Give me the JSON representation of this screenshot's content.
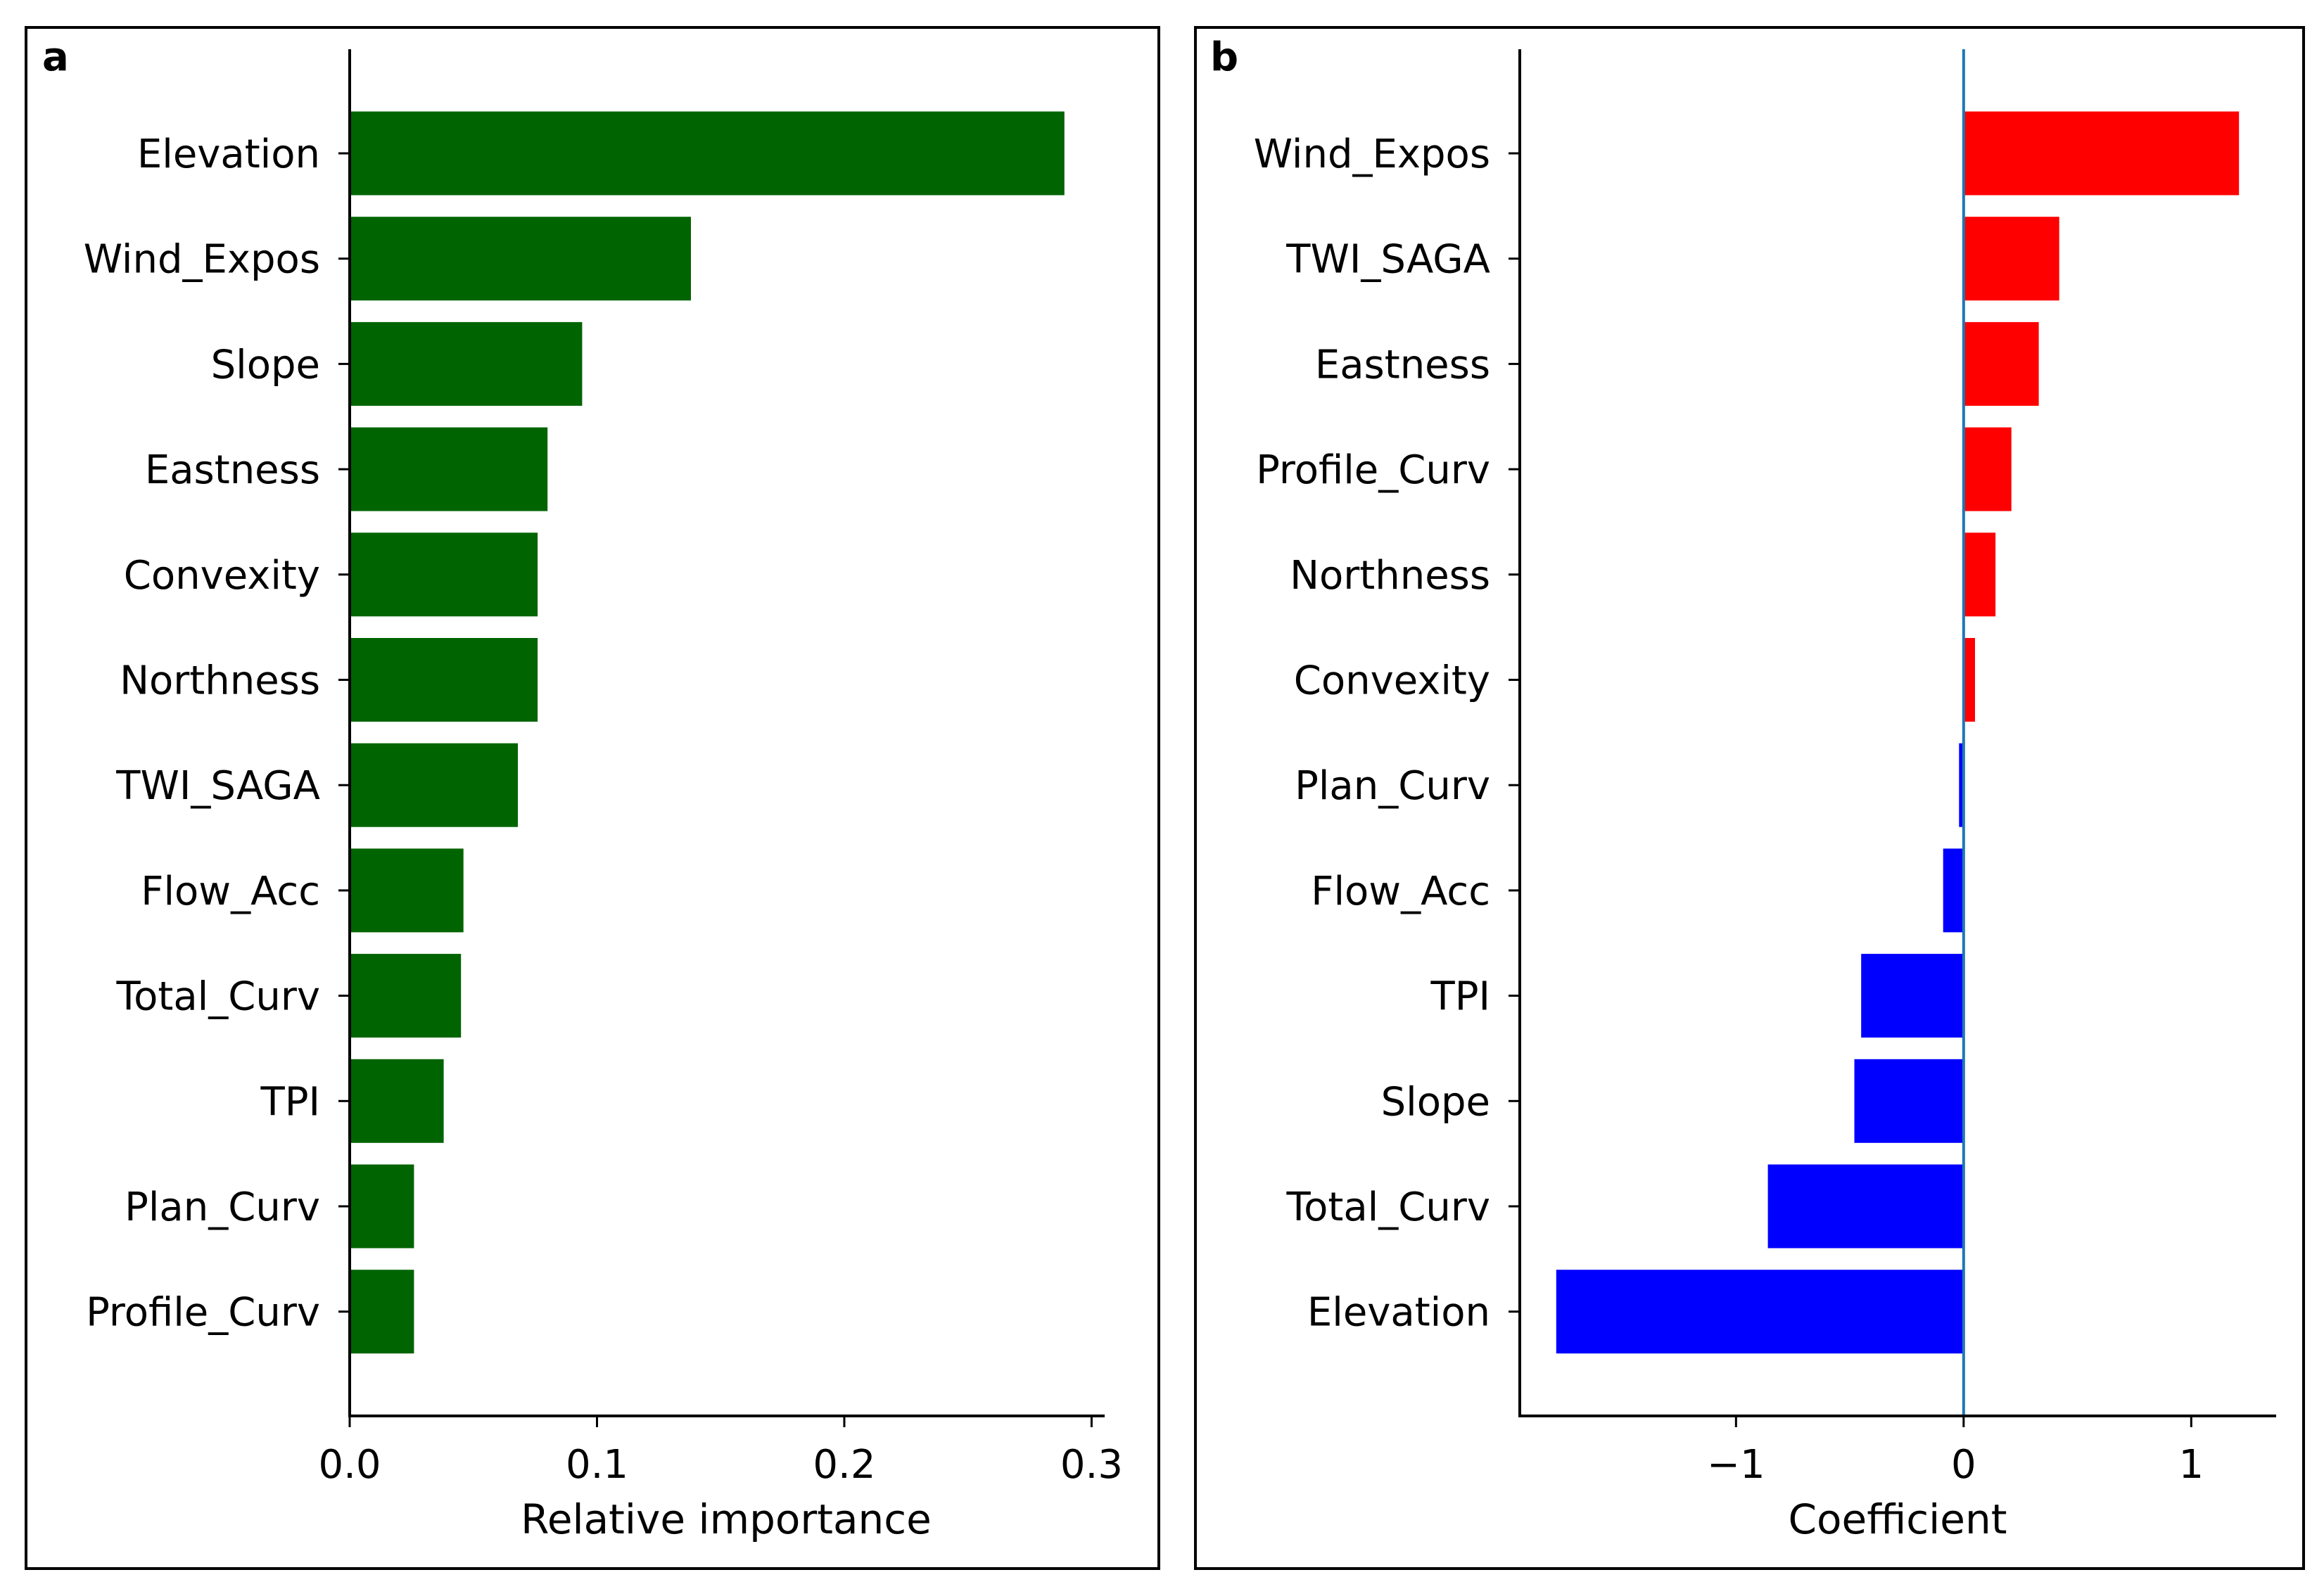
{
  "chart_data": [
    {
      "panel": "a",
      "type": "bar",
      "orientation": "horizontal",
      "categories": [
        "Elevation",
        "Wind_Expos",
        "Slope",
        "Eastness",
        "Convexity",
        "Northness",
        "TWI_SAGA",
        "Flow_Acc",
        "Total_Curv",
        "TPI",
        "Plan_Curv",
        "Profile_Curv"
      ],
      "values": [
        0.289,
        0.138,
        0.094,
        0.08,
        0.076,
        0.076,
        0.068,
        0.046,
        0.045,
        0.038,
        0.026,
        0.026
      ],
      "xlabel": "Relative importance",
      "xlim": [
        0.0,
        0.305
      ],
      "xticks": [
        0.0,
        0.1,
        0.2,
        0.3
      ],
      "xtick_labels": [
        "0.0",
        "0.1",
        "0.2",
        "0.3"
      ],
      "color": "#006400",
      "grid": false
    },
    {
      "panel": "b",
      "type": "bar",
      "orientation": "horizontal",
      "categories": [
        "Wind_Expos",
        "TWI_SAGA",
        "Eastness",
        "Profile_Curv",
        "Northness",
        "Convexity",
        "Plan_Curv",
        "Flow_Acc",
        "TPI",
        "Slope",
        "Total_Curv",
        "Elevation"
      ],
      "values": [
        1.21,
        0.42,
        0.33,
        0.21,
        0.14,
        0.05,
        -0.02,
        -0.09,
        -0.45,
        -0.48,
        -0.86,
        -1.79
      ],
      "xlabel": "Coefficient",
      "xlim": [
        -1.95,
        1.37
      ],
      "xticks": [
        -1,
        0,
        1
      ],
      "xtick_labels": [
        "−1",
        "0",
        "1"
      ],
      "positive_color": "#ff0000",
      "negative_color": "#0000ff",
      "zero_line_color": "#1f77b4",
      "grid": false
    }
  ]
}
